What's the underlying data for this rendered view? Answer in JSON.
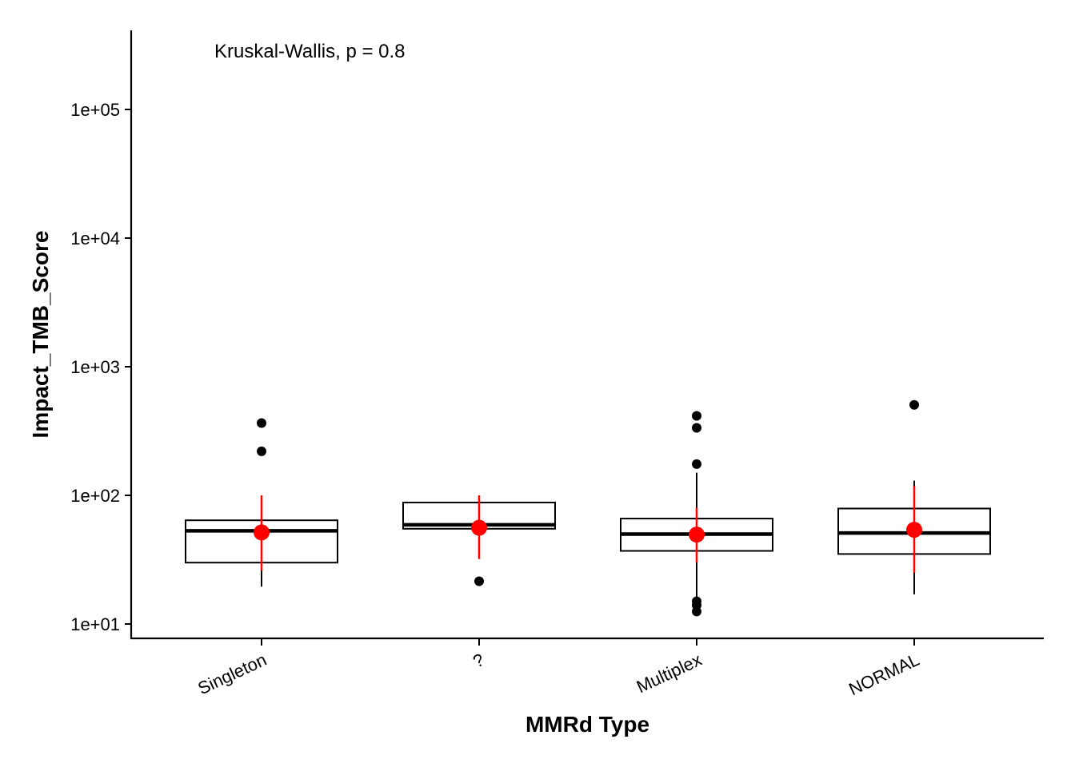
{
  "chart_data": {
    "type": "box",
    "title": "",
    "xlabel": "MMRd Type",
    "ylabel": "Impact_TMB_Score",
    "y_scale": "log10",
    "ylim": [
      7.9,
      400000
    ],
    "y_ticks": [
      10,
      100,
      1000,
      10000,
      100000
    ],
    "y_tick_labels": [
      "1e+01",
      "1e+02",
      "1e+03",
      "1e+04",
      "1e+05"
    ],
    "categories": [
      "Singleton",
      "?",
      "Multiplex",
      "NORMAL"
    ],
    "annotation": "Kruskal-Wallis, p = 0.8",
    "summary_color": "#ff0000",
    "boxes": [
      {
        "category": "Singleton",
        "q1": 30,
        "median": 53,
        "q3": 64,
        "whisker_low": 19.5,
        "whisker_high": 64,
        "outliers": [
          220,
          365
        ],
        "mean": 51.5,
        "mean_low": 26,
        "mean_high": 100
      },
      {
        "category": "?",
        "q1": 55,
        "median": 59,
        "q3": 88,
        "whisker_low": 55,
        "whisker_high": 88,
        "outliers": [
          21.5
        ],
        "mean": 56,
        "mean_low": 32,
        "mean_high": 100
      },
      {
        "category": "Multiplex",
        "q1": 37,
        "median": 50,
        "q3": 66,
        "whisker_low": 15.5,
        "whisker_high": 150,
        "outliers": [
          175,
          335,
          415,
          12.5,
          14,
          15
        ],
        "mean": 49.5,
        "mean_low": 30,
        "mean_high": 80
      },
      {
        "category": "NORMAL",
        "q1": 35,
        "median": 51,
        "q3": 79,
        "whisker_low": 17,
        "whisker_high": 130,
        "outliers": [
          505
        ],
        "mean": 54,
        "mean_low": 25,
        "mean_high": 118
      }
    ]
  }
}
